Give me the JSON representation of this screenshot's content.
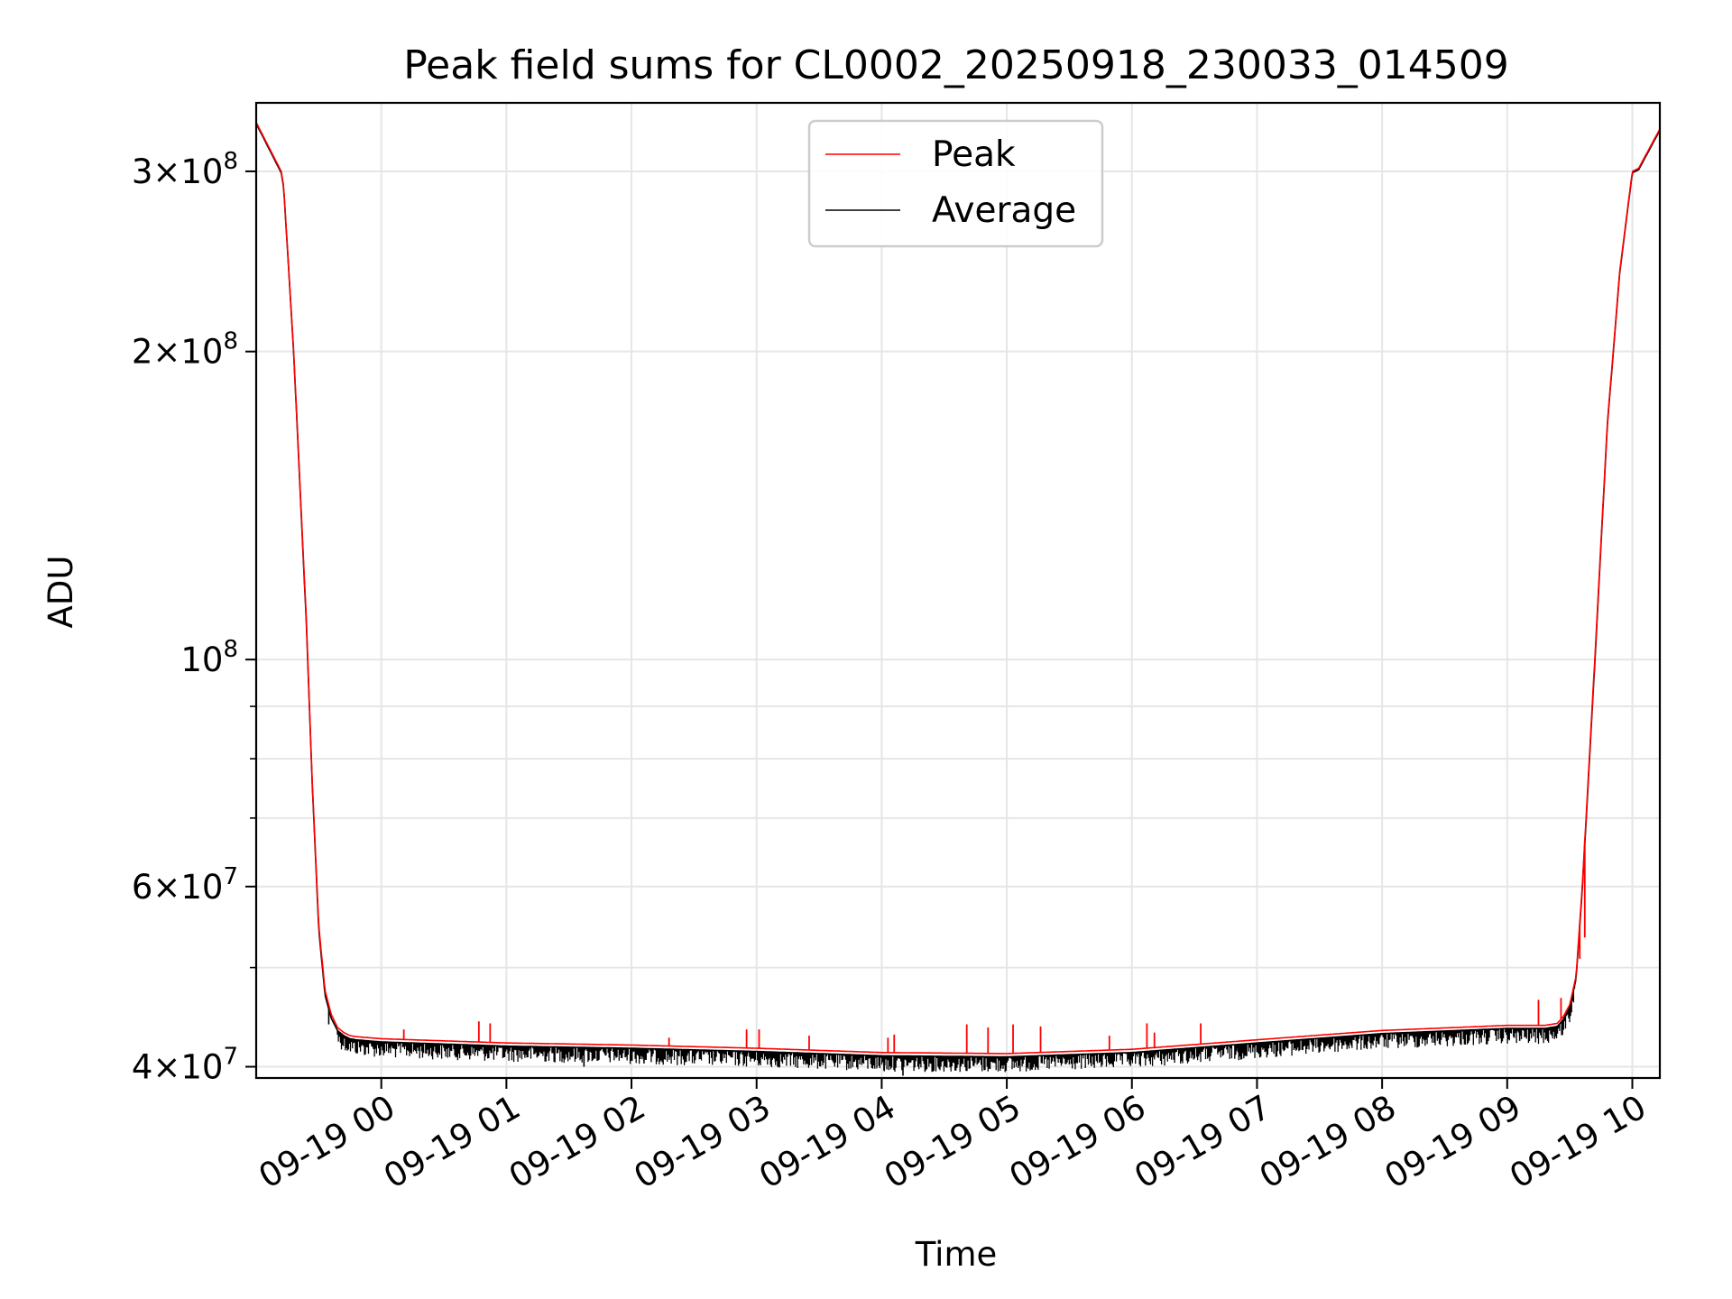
{
  "chart_data": {
    "type": "line",
    "title": "Peak field sums for CL0002_20250918_230033_014509",
    "xlabel": "Time",
    "ylabel": "ADU",
    "yscale": "log",
    "ylim": [
      39000000,
      350000000
    ],
    "xlim_hours": [
      -1.0,
      10.22
    ],
    "grid": true,
    "legend_position": "top-center",
    "x_tick_labels": [
      "09-19 00",
      "09-19 01",
      "09-19 02",
      "09-19 03",
      "09-19 04",
      "09-19 05",
      "09-19 06",
      "09-19 07",
      "09-19 08",
      "09-19 09",
      "09-19 10"
    ],
    "x_tick_hours": [
      0,
      1,
      2,
      3,
      4,
      5,
      6,
      7,
      8,
      9,
      10
    ],
    "y_major_ticks": [
      {
        "value": 40000000,
        "mantissa": "4",
        "exponent": "7"
      },
      {
        "value": 60000000,
        "mantissa": "6",
        "exponent": "7"
      },
      {
        "value": 100000000,
        "mantissa": "",
        "exponent": "8"
      },
      {
        "value": 200000000,
        "mantissa": "2",
        "exponent": "8"
      },
      {
        "value": 300000000,
        "mantissa": "3",
        "exponent": "8"
      }
    ],
    "y_minor_ticks": [
      50000000,
      70000000,
      80000000,
      90000000
    ],
    "series": [
      {
        "name": "Peak",
        "color": "#ff0000",
        "x_hours": [
          -1.0,
          -0.8,
          -0.78,
          -0.7,
          -0.6,
          -0.55,
          -0.5,
          -0.45,
          -0.4,
          -0.35,
          -0.3,
          -0.25,
          -0.2,
          -0.1,
          0,
          0.5,
          1,
          2,
          3,
          4,
          5,
          6,
          7,
          8,
          9,
          9.3,
          9.4,
          9.45,
          9.5,
          9.55,
          9.6,
          9.7,
          9.8,
          9.9,
          10.0,
          10.05,
          10.22
        ],
        "values": [
          335000000,
          300000000,
          290000000,
          200000000,
          110000000,
          75000000,
          55000000,
          47500000,
          45000000,
          43700000,
          43200000,
          42900000,
          42800000,
          42700000,
          42600000,
          42400000,
          42200000,
          42000000,
          41700000,
          41300000,
          41200000,
          41600000,
          42500000,
          43400000,
          43900000,
          43900000,
          44100000,
          44800000,
          46000000,
          49000000,
          60000000,
          100000000,
          170000000,
          240000000,
          300000000,
          302000000,
          330000000
        ],
        "spikes": [
          {
            "x_hour": 0.18,
            "value": 43500000
          },
          {
            "x_hour": 0.78,
            "value": 44300000
          },
          {
            "x_hour": 0.87,
            "value": 44100000
          },
          {
            "x_hour": 2.3,
            "value": 42700000
          },
          {
            "x_hour": 2.92,
            "value": 43500000
          },
          {
            "x_hour": 3.02,
            "value": 43500000
          },
          {
            "x_hour": 3.42,
            "value": 42900000
          },
          {
            "x_hour": 4.05,
            "value": 42700000
          },
          {
            "x_hour": 4.1,
            "value": 43000000
          },
          {
            "x_hour": 4.68,
            "value": 44000000
          },
          {
            "x_hour": 4.85,
            "value": 43700000
          },
          {
            "x_hour": 5.05,
            "value": 44000000
          },
          {
            "x_hour": 5.27,
            "value": 43800000
          },
          {
            "x_hour": 5.82,
            "value": 42900000
          },
          {
            "x_hour": 6.12,
            "value": 44100000
          },
          {
            "x_hour": 6.18,
            "value": 43200000
          },
          {
            "x_hour": 6.55,
            "value": 44100000
          },
          {
            "x_hour": 9.25,
            "value": 46500000
          },
          {
            "x_hour": 9.43,
            "value": 46700000
          },
          {
            "x_hour": 9.58,
            "value": 51000000
          },
          {
            "x_hour": 9.62,
            "value": 53500000
          }
        ]
      },
      {
        "name": "Average",
        "color": "#000000",
        "x_hours": [
          -1.0,
          -0.8,
          -0.78,
          -0.7,
          -0.6,
          -0.55,
          -0.5,
          -0.45,
          -0.4,
          -0.35,
          -0.3,
          -0.25,
          -0.2,
          -0.1,
          0,
          0.5,
          1,
          2,
          3,
          4,
          5,
          6,
          7,
          8,
          9,
          9.3,
          9.4,
          9.45,
          9.5,
          9.55,
          9.6,
          9.7,
          9.8,
          9.9,
          10.0,
          10.05,
          10.22
        ],
        "values": [
          334000000,
          299000000,
          289000000,
          199000000,
          109000000,
          74500000,
          54500000,
          47000000,
          44600000,
          43400000,
          42900000,
          42600000,
          42500000,
          42400000,
          42300000,
          42100000,
          41900000,
          41700000,
          41400000,
          41000000,
          40900000,
          41300000,
          42200000,
          43100000,
          43600000,
          43600000,
          43800000,
          44500000,
          45700000,
          48700000,
          59500000,
          99000000,
          169000000,
          239000000,
          299000000,
          301000000,
          329000000
        ],
        "noise_dip_fraction": 0.035,
        "deep_dips": [
          {
            "x_hour": -0.42,
            "value": 44000000
          },
          {
            "x_hour": -0.35,
            "value": 43000000
          },
          {
            "x_hour": 1.62,
            "value": 40000000
          },
          {
            "x_hour": 2.1,
            "value": 40300000
          },
          {
            "x_hour": 3.15,
            "value": 40400000
          },
          {
            "x_hour": 4.02,
            "value": 39600000
          },
          {
            "x_hour": 4.17,
            "value": 39200000
          },
          {
            "x_hour": 4.55,
            "value": 40200000
          },
          {
            "x_hour": 4.82,
            "value": 39700000
          },
          {
            "x_hour": 5.5,
            "value": 40200000
          },
          {
            "x_hour": 6.1,
            "value": 40800000
          },
          {
            "x_hour": 6.5,
            "value": 41000000
          },
          {
            "x_hour": 6.85,
            "value": 41300000
          },
          {
            "x_hour": 9.1,
            "value": 42400000
          }
        ]
      }
    ]
  }
}
